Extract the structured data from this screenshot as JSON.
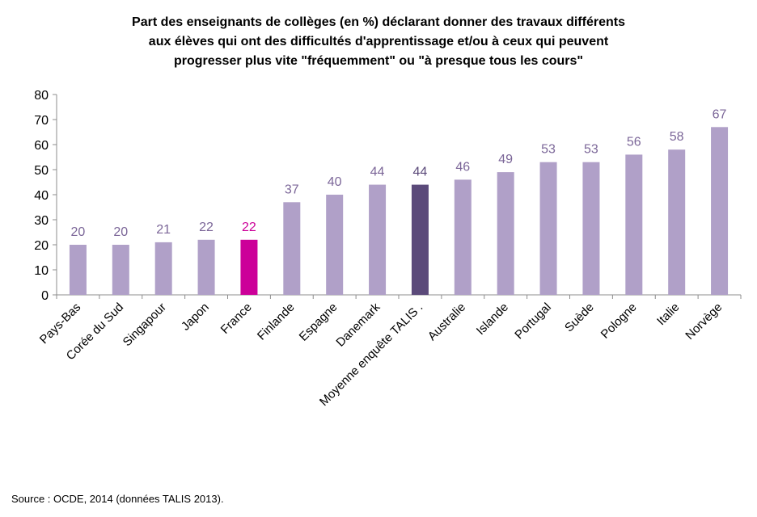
{
  "chart_data": {
    "type": "bar",
    "title_lines": [
      "Part des enseignants de collèges (en %)  déclarant donner des travaux différents",
      "aux élèves qui ont des difficultés d'apprentissage  et/ou à ceux qui peuvent",
      "progresser plus vite \"fréquemment\" ou \"à presque tous les cours\""
    ],
    "categories": [
      "Pays-Bas",
      "Corée du Sud",
      "Singapour",
      "Japon",
      "France",
      "Finlande",
      "Espagne",
      "Danemark",
      "Moyenne enquête TALIS  .",
      "Australie",
      "Islande",
      "Portugal",
      "Suède",
      "Pologne",
      "Italie",
      "Norvège"
    ],
    "values": [
      20,
      20,
      21,
      22,
      22,
      37,
      40,
      44,
      44,
      46,
      49,
      53,
      53,
      56,
      58,
      67
    ],
    "data_labels": [
      "20",
      "20",
      "21",
      "22",
      "22",
      "37",
      "40",
      "44",
      "44",
      "46",
      "49",
      "53",
      "53",
      "56",
      "58",
      "67"
    ],
    "highlight": {
      "France": "#cc0099",
      "Moyenne enquête TALIS  .": "#5b4a7a"
    },
    "ylim": [
      0,
      80
    ],
    "yticks": [
      0,
      10,
      20,
      30,
      40,
      50,
      60,
      70,
      80
    ],
    "grid": false,
    "legend": "none"
  },
  "colors": {
    "bar": "#b0a0c8",
    "label": "#7b6698",
    "axis": "#8c8c8c",
    "text": "#000000"
  },
  "source": "Source : OCDE, 2014 (données TALIS 2013)."
}
